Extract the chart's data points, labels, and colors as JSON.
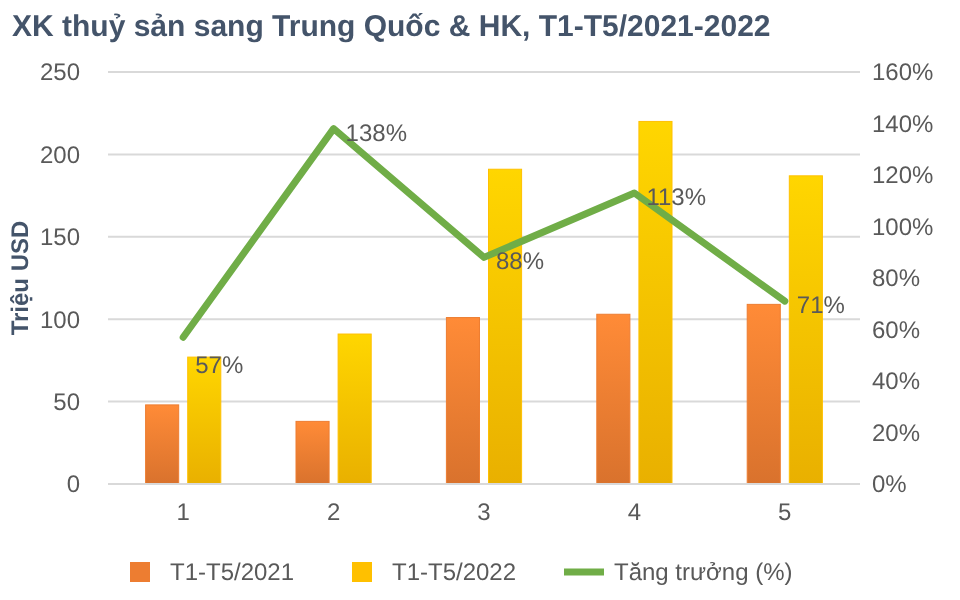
{
  "chart_data": {
    "type": "bar",
    "title": "XK thuỷ sản sang Trung Quốc & HK, T1-T5/2021-2022",
    "ylabel": "Triệu USD",
    "categories": [
      "1",
      "2",
      "3",
      "4",
      "5"
    ],
    "series": [
      {
        "name": "T1-T5/2021",
        "color": "#ed7d31",
        "values": [
          48,
          38,
          101,
          103,
          109
        ]
      },
      {
        "name": "T1-T5/2022",
        "color": "#ffc000",
        "values": [
          77,
          91,
          191,
          220,
          187
        ]
      },
      {
        "name": "Tăng trưởng (%)",
        "type": "line",
        "axis": "y2",
        "color": "#70ad47",
        "values": [
          57,
          138,
          88,
          113,
          71
        ],
        "value_labels": [
          "57%",
          "138%",
          "88%",
          "113%",
          "71%"
        ]
      }
    ],
    "ylim": [
      0,
      250
    ],
    "yticks": [
      0,
      50,
      100,
      150,
      200,
      250
    ],
    "y2lim": [
      0,
      160
    ],
    "y2ticks": [
      {
        "value": 0,
        "label": "0%"
      },
      {
        "value": 20,
        "label": "20%"
      },
      {
        "value": 40,
        "label": "40%"
      },
      {
        "value": 60,
        "label": "60%"
      },
      {
        "value": 80,
        "label": "80%"
      },
      {
        "value": 100,
        "label": "100%"
      },
      {
        "value": 120,
        "label": "120%"
      },
      {
        "value": 140,
        "label": "140%"
      },
      {
        "value": 160,
        "label": "160%"
      }
    ],
    "grid": "y",
    "legend": "bottom"
  }
}
